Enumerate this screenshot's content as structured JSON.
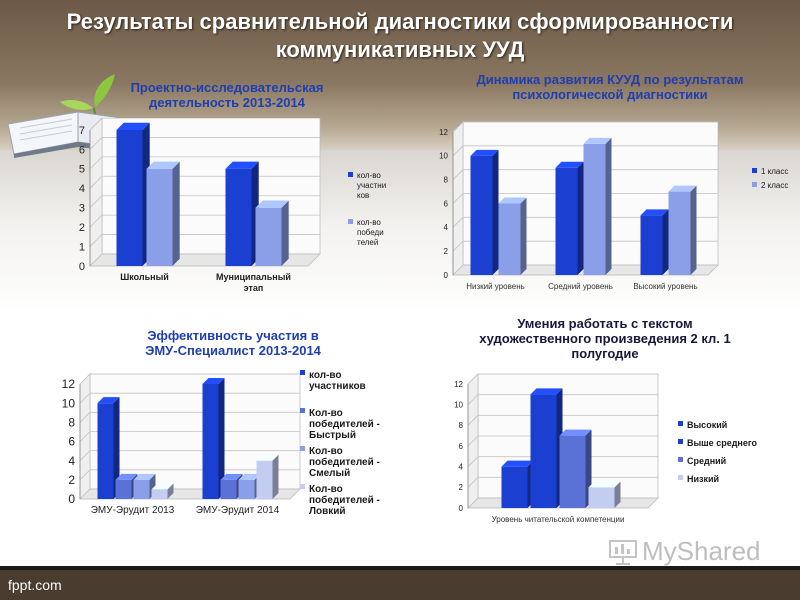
{
  "slide": {
    "title_line1": "Результаты сравнительной диагностики сформированности",
    "title_line2": "коммуникативных УУД",
    "footer": "fppt.com",
    "watermark": "MyShared"
  },
  "colors": {
    "dark_blue": "#1b3fd0",
    "light_blue": "#8b9fe8",
    "mid_blue": "#5a72d6",
    "pale_blue": "#c3cdf2",
    "title_blue": "#1f3fb0"
  },
  "chart_data": [
    {
      "id": "c1",
      "type": "bar",
      "title": "Проектно-исследовательская деятельность 2013-2014",
      "categories": [
        "Школьный",
        "Муниципальный этап"
      ],
      "category_lines": [
        [
          "Школьный"
        ],
        [
          "Муниципальный",
          "этап"
        ]
      ],
      "series": [
        {
          "name": "кол-во участников",
          "legend_lines": [
            "кол-во",
            "участни",
            "ков"
          ],
          "values": [
            7,
            5
          ]
        },
        {
          "name": "кол-во победителей",
          "legend_lines": [
            "кол-во",
            "победи",
            "телей"
          ],
          "values": [
            5,
            3
          ]
        }
      ],
      "ylim": [
        0,
        7
      ],
      "yticks": [
        0,
        1,
        2,
        3,
        4,
        5,
        6,
        7
      ],
      "legend": "right",
      "grid": true
    },
    {
      "id": "c2",
      "type": "bar",
      "title": "Динамика развития КУУД по результатам психологической диагностики",
      "categories": [
        "Низкий уровень",
        "Средний уровень",
        "Высокий уровень"
      ],
      "category_lines": [
        [
          "Низкий уровень"
        ],
        [
          "Средний уровень"
        ],
        [
          "Высокий уровень"
        ]
      ],
      "series": [
        {
          "name": "1 класс",
          "legend_lines": [
            "1 класс"
          ],
          "values": [
            10,
            9,
            5
          ]
        },
        {
          "name": "2 класс",
          "legend_lines": [
            "2 класс"
          ],
          "values": [
            6,
            11,
            7
          ]
        }
      ],
      "ylim": [
        0,
        12
      ],
      "yticks": [
        0,
        2,
        4,
        6,
        8,
        10,
        12
      ],
      "legend": "right",
      "grid": true
    },
    {
      "id": "c3",
      "type": "bar",
      "title": "Эффективность участия в ЭМУ-Специалист 2013-2014",
      "categories": [
        "ЭМУ-Эрудит 2013",
        "ЭМУ-Эрудит 2014"
      ],
      "category_lines": [
        [
          "ЭМУ-Эрудит 2013"
        ],
        [
          "ЭМУ-Эрудит 2014"
        ]
      ],
      "series": [
        {
          "name": "кол-во участников",
          "legend_lines": [
            "кол-во",
            "участников"
          ],
          "values": [
            10,
            12
          ]
        },
        {
          "name": "Кол-во победителей - Быстрый",
          "legend_lines": [
            "Кол-во",
            "победителей -",
            "Быстрый"
          ],
          "values": [
            2,
            2
          ]
        },
        {
          "name": "Кол-во победителей - Смелый",
          "legend_lines": [
            "Кол-во",
            "победителей -",
            "Смелый"
          ],
          "values": [
            2,
            2
          ]
        },
        {
          "name": "Кол-во победителей - Ловкий",
          "legend_lines": [
            "Кол-во",
            "победителей -",
            "Ловкий"
          ],
          "values": [
            1,
            4
          ]
        }
      ],
      "ylim": [
        0,
        12
      ],
      "yticks": [
        0,
        2,
        4,
        6,
        8,
        10,
        12
      ],
      "legend": "right",
      "grid": true
    },
    {
      "id": "c4",
      "type": "bar",
      "title": "Умения работать с текстом художественного произведения 2 кл. 1 полугодие",
      "categories": [
        "Уровень читательской компетенции"
      ],
      "category_lines": [
        [
          "Уровень читательской компетенции"
        ]
      ],
      "series": [
        {
          "name": "Высокий",
          "legend_lines": [
            "Высокий"
          ],
          "values": [
            4
          ]
        },
        {
          "name": "Выше среднего",
          "legend_lines": [
            "Выше среднего"
          ],
          "values": [
            11
          ]
        },
        {
          "name": "Средний",
          "legend_lines": [
            "Средний"
          ],
          "values": [
            7
          ]
        },
        {
          "name": "Низкий",
          "legend_lines": [
            "Низкий"
          ],
          "values": [
            2
          ]
        }
      ],
      "ylim": [
        0,
        12
      ],
      "yticks": [
        0,
        2,
        4,
        6,
        8,
        10,
        12
      ],
      "legend": "right",
      "grid": true
    }
  ]
}
